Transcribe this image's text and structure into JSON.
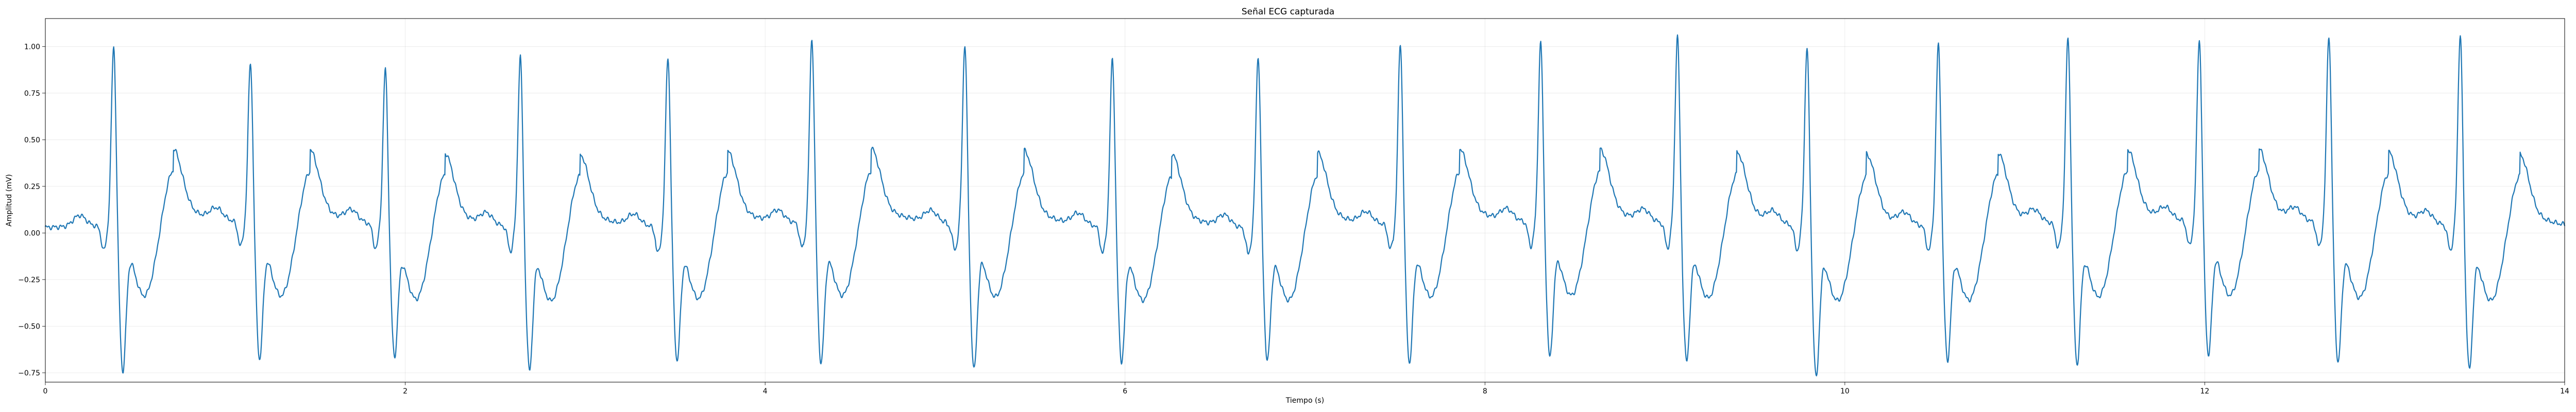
{
  "chart_data": {
    "type": "line",
    "title": "Señal ECG capturada",
    "xlabel": "Tiempo (s)",
    "ylabel": "Amplitud (mV)",
    "xlim": [
      0,
      14
    ],
    "ylim": [
      -0.8,
      1.15
    ],
    "xticks": [
      0,
      2,
      4,
      6,
      8,
      10,
      12,
      14
    ],
    "yticks": [
      -0.75,
      -0.5,
      -0.25,
      0.0,
      0.25,
      0.5,
      0.75,
      1.0
    ],
    "xtick_labels": [
      "0",
      "2",
      "4",
      "6",
      "8",
      "10",
      "12",
      "14"
    ],
    "ytick_labels": [
      "−0.75",
      "−0.50",
      "−0.25",
      "0.00",
      "0.25",
      "0.50",
      "0.75",
      "1.00"
    ],
    "grid": true,
    "color": "#1f77b4",
    "beats": [
      {
        "t": 0.38,
        "peak": 0.98,
        "trough": -0.68
      },
      {
        "t": 1.14,
        "peak": 0.89,
        "trough": -0.62
      },
      {
        "t": 1.89,
        "peak": 0.86,
        "trough": -0.59
      },
      {
        "t": 2.64,
        "peak": 0.94,
        "trough": -0.65
      },
      {
        "t": 3.46,
        "peak": 0.94,
        "trough": -0.61
      },
      {
        "t": 4.26,
        "peak": 1.02,
        "trough": -0.64
      },
      {
        "t": 5.11,
        "peak": 0.99,
        "trough": -0.67
      },
      {
        "t": 5.93,
        "peak": 0.93,
        "trough": -0.61
      },
      {
        "t": 6.74,
        "peak": 0.95,
        "trough": -0.6
      },
      {
        "t": 7.53,
        "peak": 1.0,
        "trough": -0.63
      },
      {
        "t": 8.31,
        "peak": 1.0,
        "trough": -0.61
      },
      {
        "t": 9.07,
        "peak": 1.04,
        "trough": -0.62
      },
      {
        "t": 9.79,
        "peak": 0.98,
        "trough": -0.69
      },
      {
        "t": 10.52,
        "peak": 1.0,
        "trough": -0.6
      },
      {
        "t": 11.24,
        "peak": 1.02,
        "trough": -0.64
      },
      {
        "t": 11.97,
        "peak": 1.0,
        "trough": -0.6
      },
      {
        "t": 12.69,
        "peak": 1.03,
        "trough": -0.63
      },
      {
        "t": 13.42,
        "peak": 1.05,
        "trough": -0.65
      }
    ]
  }
}
